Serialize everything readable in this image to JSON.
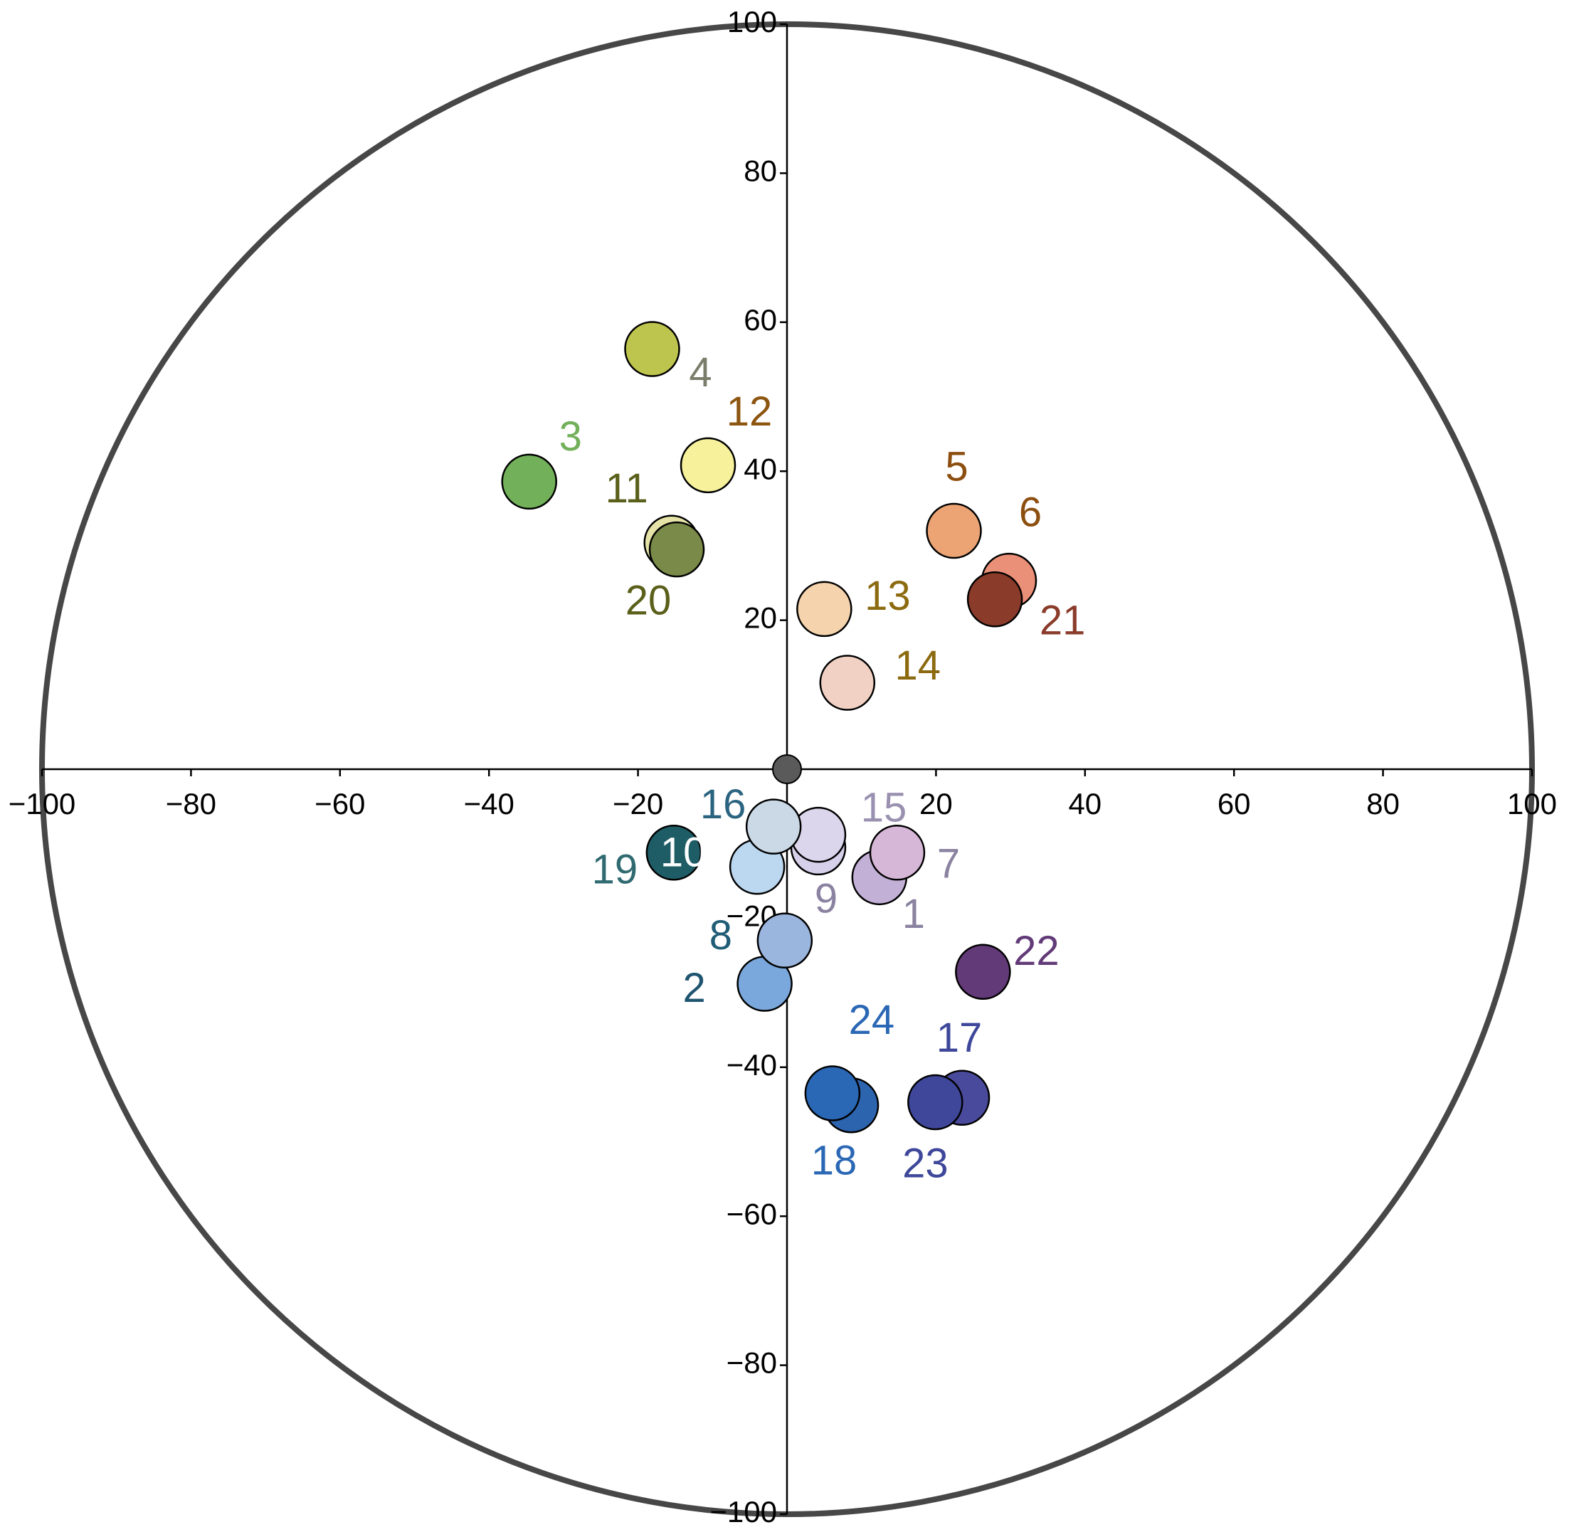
{
  "chart_data": {
    "type": "scatter",
    "labels": [
      "1",
      "2",
      "3",
      "4",
      "5",
      "6",
      "7",
      "8",
      "9",
      "10",
      "11",
      "12",
      "13",
      "14",
      "15",
      "16",
      "17",
      "18",
      "19",
      "20",
      "21",
      "22",
      "23",
      "24"
    ],
    "x": [
      12.4,
      -3.0,
      -34.6,
      -18.1,
      22.4,
      29.8,
      14.8,
      -0.3,
      4.2,
      -4.0,
      -15.5,
      -10.6,
      5.0,
      8.1,
      4.2,
      -1.8,
      23.5,
      8.6,
      -15.2,
      -14.8,
      27.9,
      26.3,
      19.9,
      6.1
    ],
    "values": [
      -14.5,
      -28.8,
      38.6,
      56.4,
      32.0,
      25.3,
      -11.2,
      -23.0,
      -10.5,
      -13.1,
      30.4,
      40.8,
      21.5,
      11.6,
      -8.8,
      -7.7,
      -44.1,
      -45.1,
      -11.2,
      29.5,
      22.8,
      -27.2,
      -44.7,
      -43.5
    ],
    "colors": [
      "#c3b0d6",
      "#7aa7dc",
      "#72b05a",
      "#bec54e",
      "#eca475",
      "#ea8f78",
      "#d7b7d8",
      "#9ab5de",
      "#d6d0ea",
      "#bcd8f0",
      "#e6e3a8",
      "#f7f19c",
      "#f4d3ad",
      "#f1d1c4",
      "#dbd6ec",
      "#cbd9e6",
      "#4a4a9d",
      "#2d64ae",
      "#1f5d66",
      "#7a8a48",
      "#8a3b2a",
      "#623a78",
      "#3e479a",
      "#2a67b4"
    ],
    "label_colors": [
      "#8a82a0",
      "#1f5470",
      "#72b05a",
      "#7a7d6a",
      "#8c4f10",
      "#8c4f10",
      "#8a82a0",
      "#1f5c75",
      "#8a82a0",
      "#ffffff",
      "#5a5f1a",
      "#8c5510",
      "#8c6a10",
      "#8c6a10",
      "#9a90b0",
      "#2b6480",
      "#3e479a",
      "#2a67b4",
      "#2f6a70",
      "#5a5f1a",
      "#8a3b2a",
      "#623a78",
      "#3e479a",
      "#2a67b4"
    ],
    "origin_point": {
      "x": 0,
      "y": 0,
      "color": "#5a5a5a"
    },
    "boundary_circle": true,
    "xlim": [
      -100,
      100
    ],
    "ylim": [
      -100,
      100
    ],
    "xticks": [
      {
        "value": -100,
        "label": "−100"
      },
      {
        "value": -80,
        "label": "−80"
      },
      {
        "value": -60,
        "label": "−60"
      },
      {
        "value": -40,
        "label": "−40"
      },
      {
        "value": -20,
        "label": "−20"
      },
      20,
      40,
      60,
      80,
      100
    ],
    "yticks": [
      {
        "value": -100,
        "label": "−100"
      },
      {
        "value": -80,
        "label": "−80"
      },
      {
        "value": -60,
        "label": "−60"
      },
      {
        "value": -40,
        "label": "−40"
      },
      {
        "value": -20,
        "label": "−20"
      },
      20,
      40,
      60,
      80,
      100
    ]
  }
}
